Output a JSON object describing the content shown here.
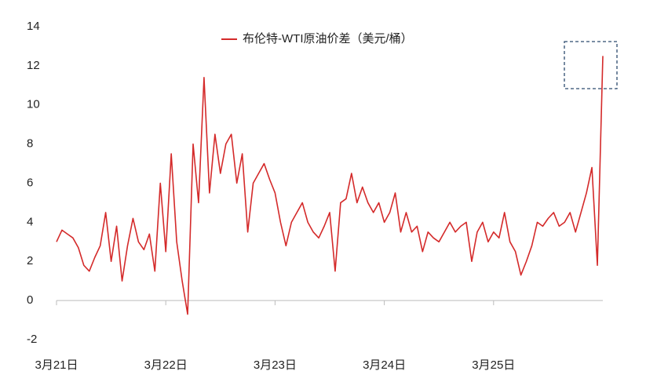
{
  "chart_data": {
    "type": "line",
    "categories": [
      "3月21日",
      null,
      null,
      null,
      null,
      null,
      null,
      null,
      null,
      null,
      null,
      null,
      null,
      null,
      null,
      null,
      null,
      null,
      null,
      null,
      "3月22日",
      null,
      null,
      null,
      null,
      null,
      null,
      null,
      null,
      null,
      null,
      null,
      null,
      null,
      null,
      null,
      null,
      null,
      null,
      null,
      "3月23日",
      null,
      null,
      null,
      null,
      null,
      null,
      null,
      null,
      null,
      null,
      null,
      null,
      null,
      null,
      null,
      null,
      null,
      null,
      null,
      "3月24日",
      null,
      null,
      null,
      null,
      null,
      null,
      null,
      null,
      null,
      null,
      null,
      null,
      null,
      null,
      null,
      null,
      null,
      null,
      null,
      "3月25日",
      null,
      null,
      null,
      null,
      null,
      null,
      null,
      null,
      null,
      null,
      null,
      null,
      null,
      null,
      null,
      null,
      null,
      null,
      null,
      null
    ],
    "series": [
      {
        "name": "布伦特-WTI原油价差（美元/桶）",
        "color": "#d42a2a",
        "values": [
          3.0,
          3.6,
          3.4,
          3.2,
          2.7,
          1.8,
          1.5,
          2.2,
          2.8,
          4.5,
          2.0,
          3.8,
          1.0,
          2.8,
          4.2,
          3.0,
          2.6,
          3.4,
          1.5,
          6.0,
          2.5,
          7.5,
          3.0,
          1.0,
          -0.7,
          8.0,
          5.0,
          11.4,
          5.5,
          8.5,
          6.5,
          8.0,
          8.5,
          6.0,
          7.5,
          3.5,
          6.0,
          6.5,
          7.0,
          6.2,
          5.5,
          4.0,
          2.8,
          4.0,
          4.5,
          5.0,
          4.0,
          3.5,
          3.2,
          3.8,
          4.5,
          1.5,
          5.0,
          5.2,
          6.5,
          5.0,
          5.8,
          5.0,
          4.5,
          5.0,
          4.0,
          4.5,
          5.5,
          3.5,
          4.5,
          3.5,
          3.8,
          2.5,
          3.5,
          3.2,
          3.0,
          3.5,
          4.0,
          3.5,
          3.8,
          4.0,
          2.0,
          3.5,
          4.0,
          3.0,
          3.5,
          3.2,
          4.5,
          3.0,
          2.5,
          1.3,
          2.0,
          2.8,
          4.0,
          3.8,
          4.2,
          4.5,
          3.8,
          4.0,
          4.5,
          3.5,
          4.5,
          5.5,
          6.8,
          1.8,
          12.5
        ]
      }
    ],
    "ylim": [
      -2,
      14
    ],
    "yticks": [
      -2,
      0,
      2,
      4,
      6,
      8,
      10,
      12,
      14
    ],
    "grid": false,
    "legend": "top"
  }
}
